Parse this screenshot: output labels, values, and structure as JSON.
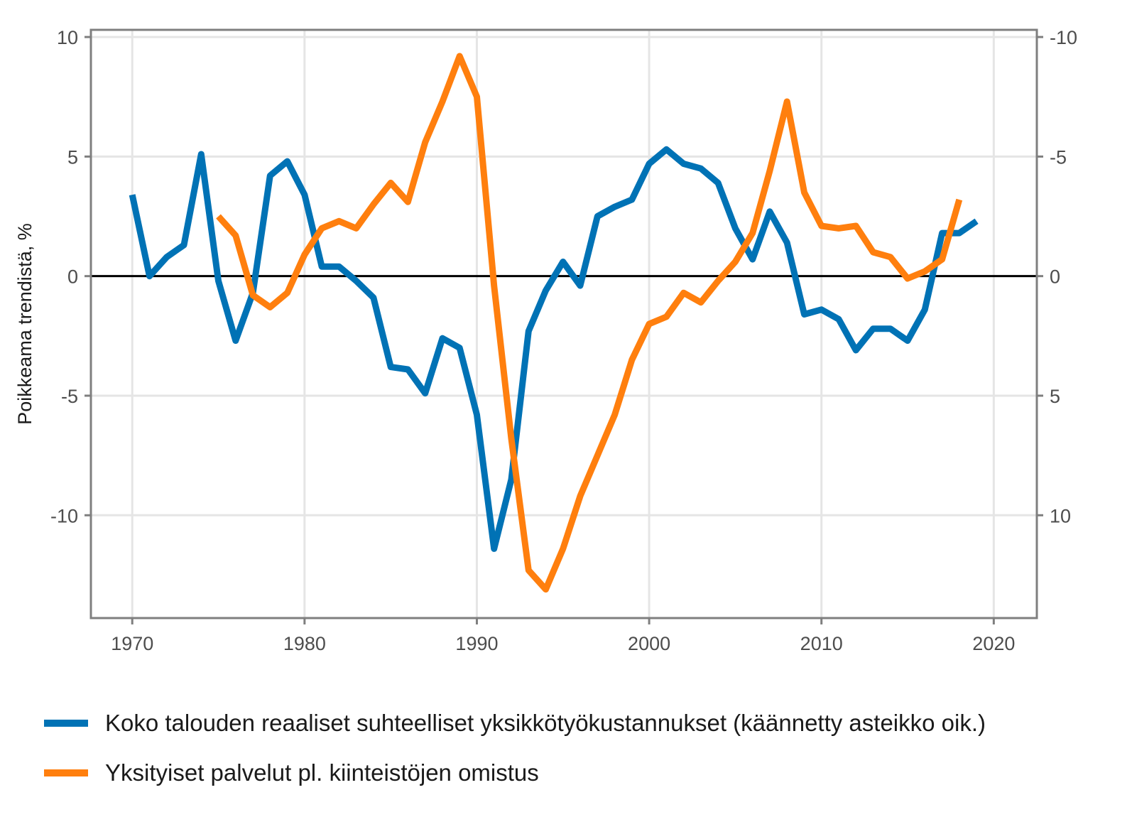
{
  "colors": {
    "blue": "#0072b5",
    "orange": "#ff7f0e",
    "grid": "#e5e5e5",
    "frame": "#7f7f7f",
    "zero": "#000000"
  },
  "chart_data": {
    "type": "line",
    "ylabel": "Poikkeama trendistä, %",
    "xlabel": "",
    "xlim": [
      1967.6,
      2022.5
    ],
    "ylim": [
      -14.3,
      10.3
    ],
    "y2lim_inverted": [
      14.3,
      -10.3
    ],
    "grid": true,
    "legend_position": "bottom",
    "x_ticks": [
      1970,
      1980,
      1990,
      2000,
      2010,
      2020
    ],
    "y_ticks": [
      10,
      5,
      0,
      -5,
      -10
    ],
    "y_tick_labels": [
      "10",
      "5",
      "0",
      "-5",
      "-10"
    ],
    "y2_ticks": [
      -10,
      -5,
      0,
      5,
      10
    ],
    "y2_tick_labels": [
      "-10",
      "-5",
      "0",
      "5",
      "10"
    ],
    "series": [
      {
        "name": "Koko talouden reaaliset suhteelliset yksikkötyökustannukset (käännetty asteikko oik.)",
        "color": "#0072b5",
        "axis": "right_inverted",
        "x": [
          1970,
          1971,
          1972,
          1973,
          1974,
          1975,
          1976,
          1977,
          1978,
          1979,
          1980,
          1981,
          1982,
          1983,
          1984,
          1985,
          1986,
          1987,
          1988,
          1989,
          1990,
          1991,
          1992,
          1993,
          1994,
          1995,
          1996,
          1997,
          1998,
          1999,
          2000,
          2001,
          2002,
          2003,
          2004,
          2005,
          2006,
          2007,
          2008,
          2009,
          2010,
          2011,
          2012,
          2013,
          2014,
          2015,
          2016,
          2017,
          2018,
          2019
        ],
        "y": [
          -3.4,
          0.0,
          -0.8,
          -1.3,
          -5.1,
          0.2,
          2.7,
          0.7,
          -4.2,
          -4.8,
          -3.4,
          -0.4,
          -0.4,
          0.2,
          0.9,
          3.8,
          3.9,
          4.9,
          2.6,
          3.0,
          5.8,
          11.4,
          8.5,
          2.3,
          0.6,
          -0.6,
          0.4,
          -2.5,
          -2.9,
          -3.2,
          -4.7,
          -5.3,
          -4.7,
          -4.5,
          -3.9,
          -2.0,
          -0.7,
          -2.7,
          -1.4,
          1.6,
          1.4,
          1.8,
          3.1,
          2.2,
          2.2,
          2.7,
          1.4,
          -1.8,
          -1.8,
          -2.3
        ]
      },
      {
        "name": "Yksityiset palvelut pl. kiinteistöjen omistus",
        "color": "#ff7f0e",
        "axis": "left",
        "x": [
          1975,
          1976,
          1977,
          1978,
          1979,
          1980,
          1981,
          1982,
          1983,
          1984,
          1985,
          1986,
          1987,
          1988,
          1989,
          1990,
          1991,
          1992,
          1993,
          1994,
          1995,
          1996,
          1997,
          1998,
          1999,
          2000,
          2001,
          2002,
          2003,
          2004,
          2005,
          2006,
          2007,
          2008,
          2009,
          2010,
          2011,
          2012,
          2013,
          2014,
          2015,
          2016,
          2017,
          2018
        ],
        "y": [
          2.5,
          1.7,
          -0.8,
          -1.3,
          -0.7,
          0.9,
          2.0,
          2.3,
          2.0,
          3.0,
          3.9,
          3.1,
          5.6,
          7.3,
          9.2,
          7.5,
          -0.4,
          -6.8,
          -12.3,
          -13.1,
          -11.4,
          -9.2,
          -7.5,
          -5.8,
          -3.5,
          -2.0,
          -1.7,
          -0.7,
          -1.1,
          -0.2,
          0.6,
          1.8,
          4.4,
          7.3,
          3.5,
          2.1,
          2.0,
          2.1,
          1.0,
          0.8,
          -0.1,
          0.2,
          0.7,
          3.2
        ]
      }
    ]
  }
}
